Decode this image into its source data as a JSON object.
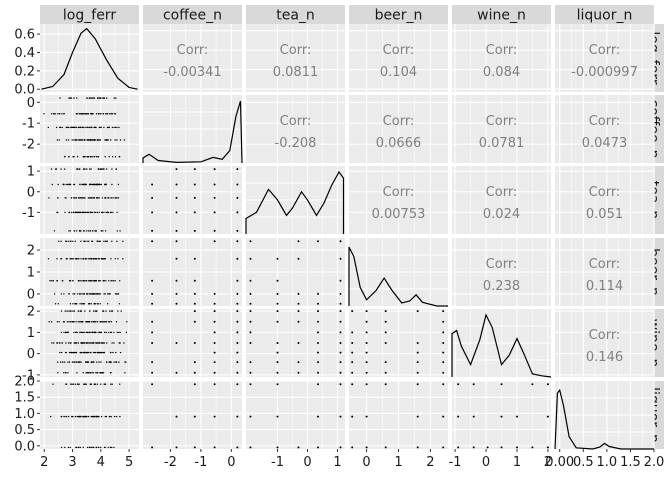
{
  "chart_data": {
    "type": "scatter-matrix",
    "variables": [
      "log_ferr",
      "coffee_n",
      "tea_n",
      "beer_n",
      "wine_n",
      "liquor_n"
    ],
    "corr_label": "Corr:",
    "correlations": [
      {
        "row": "log_ferr",
        "col": "coffee_n",
        "value": "-0.00341"
      },
      {
        "row": "log_ferr",
        "col": "tea_n",
        "value": "0.0811"
      },
      {
        "row": "log_ferr",
        "col": "beer_n",
        "value": "0.104"
      },
      {
        "row": "log_ferr",
        "col": "wine_n",
        "value": "0.084"
      },
      {
        "row": "log_ferr",
        "col": "liquor_n",
        "value": "-0.000997"
      },
      {
        "row": "coffee_n",
        "col": "tea_n",
        "value": "-0.208"
      },
      {
        "row": "coffee_n",
        "col": "beer_n",
        "value": "0.0666"
      },
      {
        "row": "coffee_n",
        "col": "wine_n",
        "value": "0.0781"
      },
      {
        "row": "coffee_n",
        "col": "liquor_n",
        "value": "0.0473"
      },
      {
        "row": "tea_n",
        "col": "beer_n",
        "value": "0.00753"
      },
      {
        "row": "tea_n",
        "col": "wine_n",
        "value": "0.024"
      },
      {
        "row": "tea_n",
        "col": "liquor_n",
        "value": "0.051"
      },
      {
        "row": "beer_n",
        "col": "wine_n",
        "value": "0.238"
      },
      {
        "row": "beer_n",
        "col": "liquor_n",
        "value": "0.114"
      },
      {
        "row": "wine_n",
        "col": "liquor_n",
        "value": "0.146"
      }
    ],
    "axes": {
      "log_ferr": {
        "range": [
          1.85,
          5.35
        ],
        "ticks": [
          2,
          3,
          4,
          5
        ],
        "tick_labels": [
          "2",
          "3",
          "4",
          "5"
        ],
        "levels": null,
        "density_y_ticks": [
          0.0,
          0.2,
          0.4,
          0.6
        ],
        "density_y_labels": [
          "0.0",
          "0.2",
          "0.4",
          "0.6"
        ],
        "density_y_range": [
          -0.03,
          0.71
        ]
      },
      "coffee_n": {
        "range": [
          -2.9,
          0.35
        ],
        "ticks": [
          -2,
          -1,
          0
        ],
        "tick_labels": [
          "-2",
          "-1",
          "0"
        ],
        "levels": [
          -2.6,
          -1.8,
          -1.2,
          -0.55,
          0.2
        ]
      },
      "tea_n": {
        "range": [
          -2.05,
          1.25
        ],
        "ticks": [
          -1,
          0,
          1
        ],
        "tick_labels": [
          "-1",
          "0",
          "1"
        ],
        "levels": [
          -1.9,
          -1.0,
          -0.3,
          0.35,
          1.1
        ]
      },
      "beer_n": {
        "range": [
          -0.55,
          2.55
        ],
        "ticks": [
          0,
          1,
          2
        ],
        "tick_labels": [
          "0",
          "1",
          "2"
        ],
        "levels": [
          -0.45,
          0.0,
          0.6,
          1.6,
          2.4
        ]
      },
      "wine_n": {
        "range": [
          -1.1,
          2.1
        ],
        "ticks": [
          -1,
          0,
          1,
          2
        ],
        "tick_labels": [
          "-1",
          "0",
          "1",
          "2"
        ],
        "levels": [
          -0.9,
          -0.4,
          0.05,
          0.5,
          1.0,
          1.5,
          2.0
        ]
      },
      "liquor_n": {
        "range": [
          -0.1,
          2.0
        ],
        "ticks": [
          0.0,
          0.5,
          1.0,
          1.5,
          2.0
        ],
        "tick_labels": [
          "0.0",
          "0.5",
          "1.0",
          "1.5",
          "2.0"
        ],
        "bottom_tick_labels": [
          "0.00",
          "0.5",
          "1.0",
          "1.5",
          "2.0"
        ],
        "levels": [
          -0.05,
          0.9,
          1.9
        ]
      }
    },
    "densities": {
      "log_ferr": [
        [
          1.9,
          0.0
        ],
        [
          2.3,
          0.03
        ],
        [
          2.7,
          0.16
        ],
        [
          3.0,
          0.4
        ],
        [
          3.3,
          0.61
        ],
        [
          3.5,
          0.66
        ],
        [
          3.8,
          0.55
        ],
        [
          4.2,
          0.32
        ],
        [
          4.6,
          0.12
        ],
        [
          5.0,
          0.02
        ],
        [
          5.3,
          0.0
        ]
      ],
      "coffee_n": [
        [
          -2.9,
          0.08
        ],
        [
          -2.7,
          0.14
        ],
        [
          -2.4,
          0.04
        ],
        [
          -1.8,
          0.01
        ],
        [
          -1.0,
          0.02
        ],
        [
          -0.6,
          0.09
        ],
        [
          -0.3,
          0.06
        ],
        [
          -0.05,
          0.2
        ],
        [
          0.15,
          0.75
        ],
        [
          0.3,
          1.0
        ],
        [
          0.35,
          0.0
        ]
      ],
      "tea_n": [
        [
          -2.05,
          0.25
        ],
        [
          -1.7,
          0.35
        ],
        [
          -1.3,
          0.72
        ],
        [
          -1.0,
          0.55
        ],
        [
          -0.7,
          0.3
        ],
        [
          -0.5,
          0.42
        ],
        [
          -0.2,
          0.68
        ],
        [
          0.0,
          0.55
        ],
        [
          0.3,
          0.3
        ],
        [
          0.55,
          0.5
        ],
        [
          0.8,
          0.78
        ],
        [
          1.05,
          1.0
        ],
        [
          1.2,
          0.9
        ]
      ],
      "beer_n": [
        [
          -0.55,
          0.95
        ],
        [
          -0.4,
          0.8
        ],
        [
          -0.2,
          0.3
        ],
        [
          0.0,
          0.1
        ],
        [
          0.3,
          0.25
        ],
        [
          0.55,
          0.45
        ],
        [
          0.8,
          0.25
        ],
        [
          1.1,
          0.05
        ],
        [
          1.35,
          0.08
        ],
        [
          1.55,
          0.18
        ],
        [
          1.75,
          0.06
        ],
        [
          2.2,
          0.0
        ],
        [
          2.55,
          0.0
        ]
      ],
      "wine_n": [
        [
          -1.1,
          0.7
        ],
        [
          -0.95,
          0.75
        ],
        [
          -0.8,
          0.5
        ],
        [
          -0.5,
          0.2
        ],
        [
          -0.2,
          0.6
        ],
        [
          0.0,
          1.0
        ],
        [
          0.2,
          0.8
        ],
        [
          0.5,
          0.2
        ],
        [
          0.75,
          0.35
        ],
        [
          1.0,
          0.62
        ],
        [
          1.2,
          0.4
        ],
        [
          1.5,
          0.05
        ],
        [
          1.8,
          0.02
        ],
        [
          2.1,
          0.0
        ]
      ],
      "liquor_n": [
        [
          -0.1,
          0.0
        ],
        [
          -0.05,
          0.9
        ],
        [
          0.0,
          0.95
        ],
        [
          0.08,
          0.7
        ],
        [
          0.2,
          0.2
        ],
        [
          0.35,
          0.02
        ],
        [
          0.7,
          0.0
        ],
        [
          0.85,
          0.03
        ],
        [
          0.95,
          0.09
        ],
        [
          1.05,
          0.04
        ],
        [
          1.3,
          0.0
        ],
        [
          2.0,
          0.0
        ]
      ]
    }
  }
}
